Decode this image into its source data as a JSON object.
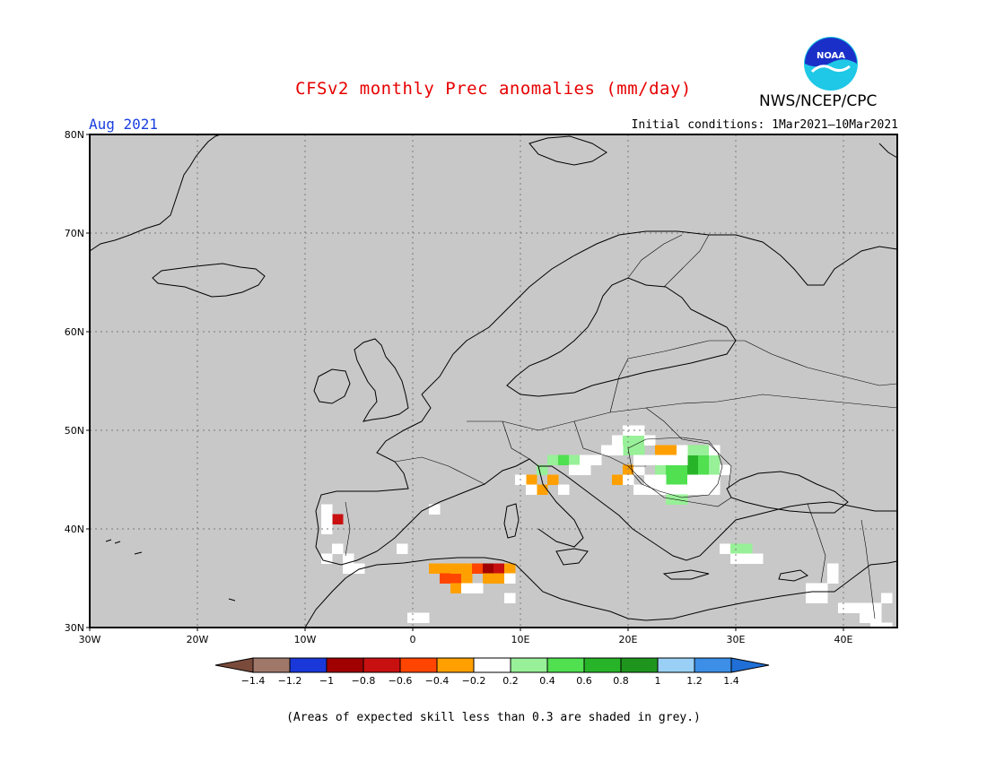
{
  "title": "CFSv2 monthly Prec anomalies (mm/day)",
  "month": "Aug 2021",
  "initial_conditions": "Initial conditions: 1Mar2021–10Mar2021",
  "agency": "NWS/NCEP/CPC",
  "logo_text": "NOAA",
  "footnote": "(Areas of expected skill less than 0.3 are shaded in grey.)",
  "colors": {
    "map_background": "#c8c8c8",
    "land_outline": "#000000",
    "gridline": "#7a7a7a"
  },
  "map": {
    "lat_ticks": [
      {
        "value": 80,
        "label": "80N"
      },
      {
        "value": 70,
        "label": "70N"
      },
      {
        "value": 60,
        "label": "60N"
      },
      {
        "value": 50,
        "label": "50N"
      },
      {
        "value": 40,
        "label": "40N"
      },
      {
        "value": 30,
        "label": "30N"
      }
    ],
    "lon_ticks": [
      {
        "value": -30,
        "label": "30W"
      },
      {
        "value": -20,
        "label": "20W"
      },
      {
        "value": -10,
        "label": "10W"
      },
      {
        "value": 0,
        "label": "0"
      },
      {
        "value": 10,
        "label": "10E"
      },
      {
        "value": 20,
        "label": "20E"
      },
      {
        "value": 30,
        "label": "30E"
      },
      {
        "value": 40,
        "label": "40E"
      }
    ],
    "lon_range": [
      -30,
      45
    ],
    "lat_range": [
      30,
      80
    ]
  },
  "legend": {
    "labels": [
      "-1.4",
      "-1.2",
      "-1",
      "-0.8",
      "-0.6",
      "-0.4",
      "-0.2",
      "0.2",
      "0.4",
      "0.6",
      "0.8",
      "1",
      "1.2",
      "1.4"
    ],
    "bins": [
      {
        "color": "#7a4a3a"
      },
      {
        "color": "#a0786a"
      },
      {
        "color": "#1a37d9"
      },
      {
        "color": "#a00000"
      },
      {
        "color": "#c81010"
      },
      {
        "color": "#ff4500"
      },
      {
        "color": "#ffa000"
      },
      {
        "color": "#ffffff"
      },
      {
        "color": "#98f098"
      },
      {
        "color": "#50e050"
      },
      {
        "color": "#28b428"
      },
      {
        "color": "#1e961e"
      },
      {
        "color": "#9ad0f5"
      },
      {
        "color": "#3c8ee6"
      },
      {
        "color": "#1f6fd6"
      }
    ]
  },
  "chart_data": {
    "type": "heatmap",
    "title": "CFSv2 monthly Prec anomalies (mm/day)",
    "period": "Aug 2021",
    "cell_size_deg": 1,
    "cells": [
      {
        "lon": -7,
        "lat": 41,
        "v": -0.7
      },
      {
        "lon": -8,
        "lat": 41,
        "v": 0
      },
      {
        "lon": -8,
        "lat": 42,
        "v": 0
      },
      {
        "lon": -8,
        "lat": 40,
        "v": 0
      },
      {
        "lon": -7,
        "lat": 38,
        "v": 0
      },
      {
        "lon": -8,
        "lat": 37,
        "v": 0
      },
      {
        "lon": -6,
        "lat": 37,
        "v": 0
      },
      {
        "lon": -6,
        "lat": 36,
        "v": 0
      },
      {
        "lon": -5,
        "lat": 36,
        "v": 0
      },
      {
        "lon": -1,
        "lat": 38,
        "v": 0
      },
      {
        "lon": 2,
        "lat": 42,
        "v": 0
      },
      {
        "lon": 2,
        "lat": 36,
        "v": -0.3
      },
      {
        "lon": 3,
        "lat": 36,
        "v": -0.3
      },
      {
        "lon": 3,
        "lat": 35,
        "v": -0.5
      },
      {
        "lon": 4,
        "lat": 35,
        "v": -0.5
      },
      {
        "lon": 4,
        "lat": 36,
        "v": -0.3
      },
      {
        "lon": 5,
        "lat": 36,
        "v": -0.3
      },
      {
        "lon": 5,
        "lat": 35,
        "v": -0.3
      },
      {
        "lon": 4,
        "lat": 34,
        "v": -0.3
      },
      {
        "lon": 6,
        "lat": 36,
        "v": -0.5
      },
      {
        "lon": 7,
        "lat": 36,
        "v": -0.9
      },
      {
        "lon": 8,
        "lat": 36,
        "v": -0.7
      },
      {
        "lon": 7,
        "lat": 35,
        "v": -0.3
      },
      {
        "lon": 8,
        "lat": 35,
        "v": -0.3
      },
      {
        "lon": 9,
        "lat": 36,
        "v": -0.3
      },
      {
        "lon": 6,
        "lat": 34,
        "v": 0
      },
      {
        "lon": 5,
        "lat": 34,
        "v": 0
      },
      {
        "lon": 9,
        "lat": 35,
        "v": 0
      },
      {
        "lon": 9,
        "lat": 33,
        "v": 0
      },
      {
        "lon": 0,
        "lat": 31,
        "v": 0
      },
      {
        "lon": 1,
        "lat": 31,
        "v": 0
      },
      {
        "lon": 11,
        "lat": 45,
        "v": -0.3
      },
      {
        "lon": 12,
        "lat": 44,
        "v": -0.3
      },
      {
        "lon": 13,
        "lat": 45,
        "v": -0.3
      },
      {
        "lon": 10,
        "lat": 45,
        "v": 0
      },
      {
        "lon": 11,
        "lat": 44,
        "v": 0
      },
      {
        "lon": 14,
        "lat": 44,
        "v": 0
      },
      {
        "lon": 12,
        "lat": 46,
        "v": 0.3
      },
      {
        "lon": 13,
        "lat": 47,
        "v": 0.3
      },
      {
        "lon": 14,
        "lat": 47,
        "v": 0.5
      },
      {
        "lon": 15,
        "lat": 47,
        "v": 0.3
      },
      {
        "lon": 15,
        "lat": 46,
        "v": 0
      },
      {
        "lon": 16,
        "lat": 46,
        "v": 0
      },
      {
        "lon": 17,
        "lat": 47,
        "v": 0
      },
      {
        "lon": 16,
        "lat": 47,
        "v": 0
      },
      {
        "lon": 19,
        "lat": 49,
        "v": 0
      },
      {
        "lon": 20,
        "lat": 49,
        "v": 0.3
      },
      {
        "lon": 21,
        "lat": 49,
        "v": 0.3
      },
      {
        "lon": 20,
        "lat": 48,
        "v": 0.3
      },
      {
        "lon": 21,
        "lat": 48,
        "v": 0.3
      },
      {
        "lon": 20,
        "lat": 50,
        "v": 0
      },
      {
        "lon": 21,
        "lat": 50,
        "v": 0
      },
      {
        "lon": 22,
        "lat": 49,
        "v": 0
      },
      {
        "lon": 19,
        "lat": 48,
        "v": 0
      },
      {
        "lon": 18,
        "lat": 48,
        "v": 0
      },
      {
        "lon": 23,
        "lat": 48,
        "v": -0.3
      },
      {
        "lon": 24,
        "lat": 48,
        "v": -0.3
      },
      {
        "lon": 19,
        "lat": 45,
        "v": -0.3
      },
      {
        "lon": 20,
        "lat": 46,
        "v": -0.3
      },
      {
        "lon": 20,
        "lat": 45,
        "v": 0
      },
      {
        "lon": 21,
        "lat": 46,
        "v": 0
      },
      {
        "lon": 22,
        "lat": 47,
        "v": 0
      },
      {
        "lon": 21,
        "lat": 47,
        "v": 0
      },
      {
        "lon": 22,
        "lat": 45,
        "v": 0
      },
      {
        "lon": 22,
        "lat": 44,
        "v": 0
      },
      {
        "lon": 21,
        "lat": 44,
        "v": 0
      },
      {
        "lon": 23,
        "lat": 46,
        "v": 0.3
      },
      {
        "lon": 24,
        "lat": 46,
        "v": 0.5
      },
      {
        "lon": 25,
        "lat": 46,
        "v": 0.5
      },
      {
        "lon": 24,
        "lat": 45,
        "v": 0.5
      },
      {
        "lon": 25,
        "lat": 45,
        "v": 0.5
      },
      {
        "lon": 26,
        "lat": 47,
        "v": 0.7
      },
      {
        "lon": 26,
        "lat": 46,
        "v": 0.7
      },
      {
        "lon": 27,
        "lat": 47,
        "v": 0.5
      },
      {
        "lon": 27,
        "lat": 46,
        "v": 0.5
      },
      {
        "lon": 26,
        "lat": 48,
        "v": 0.3
      },
      {
        "lon": 27,
        "lat": 48,
        "v": 0.3
      },
      {
        "lon": 28,
        "lat": 47,
        "v": 0.3
      },
      {
        "lon": 28,
        "lat": 46,
        "v": 0.3
      },
      {
        "lon": 23,
        "lat": 47,
        "v": 0
      },
      {
        "lon": 24,
        "lat": 47,
        "v": 0
      },
      {
        "lon": 25,
        "lat": 47,
        "v": 0
      },
      {
        "lon": 23,
        "lat": 45,
        "v": 0
      },
      {
        "lon": 26,
        "lat": 45,
        "v": 0
      },
      {
        "lon": 27,
        "lat": 45,
        "v": 0
      },
      {
        "lon": 28,
        "lat": 45,
        "v": 0
      },
      {
        "lon": 29,
        "lat": 46,
        "v": 0
      },
      {
        "lon": 23,
        "lat": 44,
        "v": 0
      },
      {
        "lon": 24,
        "lat": 44,
        "v": 0
      },
      {
        "lon": 25,
        "lat": 44,
        "v": 0
      },
      {
        "lon": 26,
        "lat": 44,
        "v": 0
      },
      {
        "lon": 27,
        "lat": 44,
        "v": 0
      },
      {
        "lon": 24,
        "lat": 43,
        "v": 0.3
      },
      {
        "lon": 25,
        "lat": 43,
        "v": 0.3
      },
      {
        "lon": 25,
        "lat": 48,
        "v": 0
      },
      {
        "lon": 28,
        "lat": 48,
        "v": 0
      },
      {
        "lon": 28,
        "lat": 44,
        "v": 0
      },
      {
        "lon": 29,
        "lat": 38,
        "v": 0
      },
      {
        "lon": 30,
        "lat": 38,
        "v": 0.3
      },
      {
        "lon": 31,
        "lat": 38,
        "v": 0.3
      },
      {
        "lon": 30,
        "lat": 37,
        "v": 0
      },
      {
        "lon": 31,
        "lat": 37,
        "v": 0
      },
      {
        "lon": 32,
        "lat": 37,
        "v": 0
      },
      {
        "lon": 39,
        "lat": 36,
        "v": 0
      },
      {
        "lon": 39,
        "lat": 35,
        "v": 0
      },
      {
        "lon": 37,
        "lat": 34,
        "v": 0
      },
      {
        "lon": 38,
        "lat": 34,
        "v": 0
      },
      {
        "lon": 37,
        "lat": 33,
        "v": 0
      },
      {
        "lon": 38,
        "lat": 33,
        "v": 0
      },
      {
        "lon": 40,
        "lat": 32,
        "v": 0
      },
      {
        "lon": 41,
        "lat": 32,
        "v": 0
      },
      {
        "lon": 42,
        "lat": 32,
        "v": 0
      },
      {
        "lon": 42,
        "lat": 31,
        "v": 0
      },
      {
        "lon": 43,
        "lat": 31,
        "v": 0
      },
      {
        "lon": 43,
        "lat": 30,
        "v": 0
      },
      {
        "lon": 44,
        "lat": 30,
        "v": 0
      },
      {
        "lon": 44,
        "lat": 33,
        "v": 0
      },
      {
        "lon": 43,
        "lat": 32,
        "v": 0
      }
    ]
  }
}
